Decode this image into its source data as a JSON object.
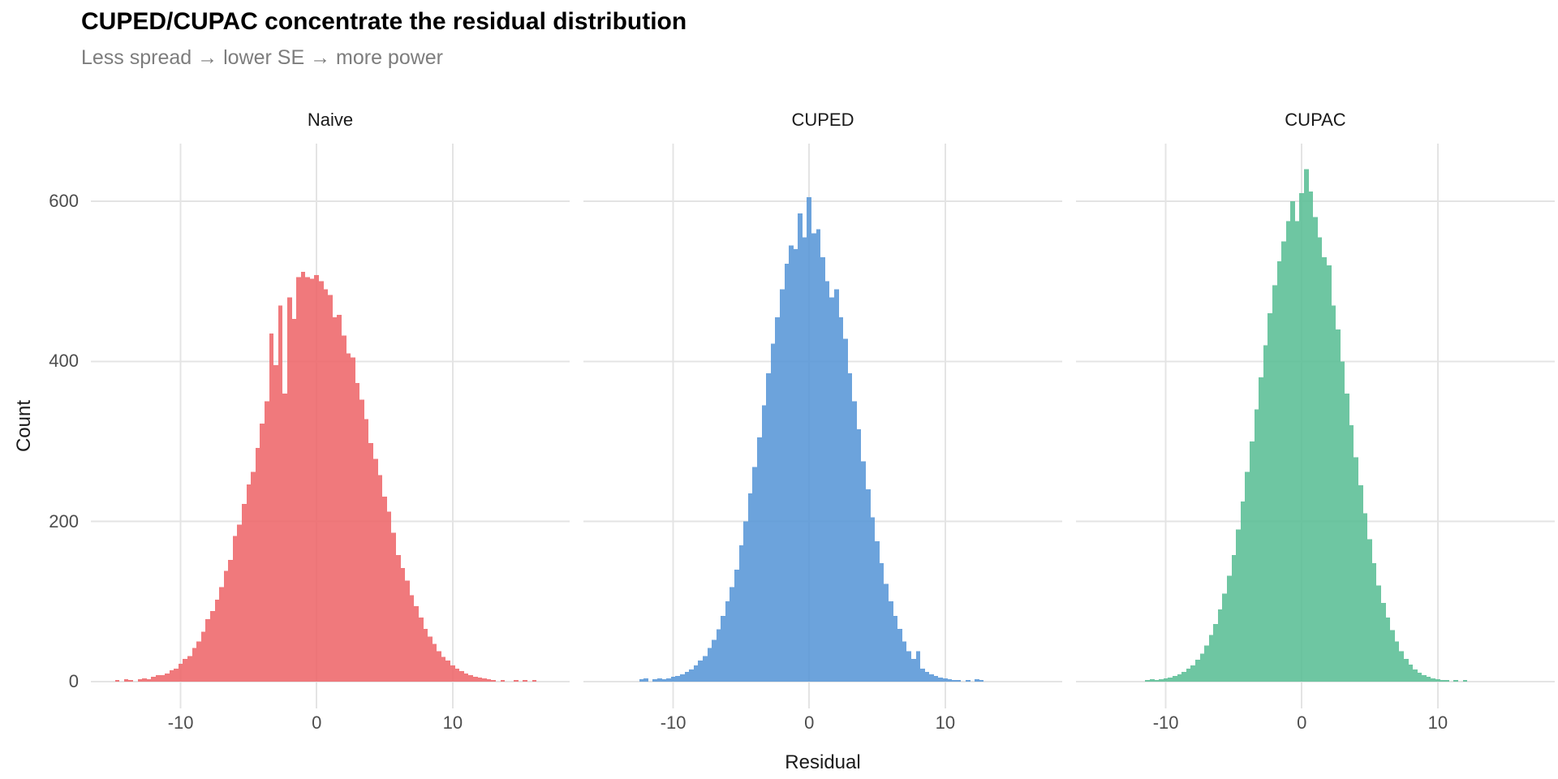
{
  "header": {
    "title": "CUPED/CUPAC concentrate the residual distribution",
    "subtitle": "Less spread → lower SE → more power"
  },
  "axes": {
    "x_label": "Residual",
    "y_label": "Count",
    "x_tick_labels": [
      "-10",
      "0",
      "10"
    ],
    "y_tick_labels": [
      "0",
      "200",
      "400",
      "600"
    ]
  },
  "theme": {
    "background": "#ffffff",
    "gridline_color": "#e4e4e4",
    "tick_text_color": "#4d4d4d",
    "facet_text_color": "#1a1a1a",
    "subtitle_color": "#7d7d7d",
    "bar_opacity": 0.88
  },
  "chart_data": {
    "type": "bar",
    "subtype": "faceted-histogram",
    "title": "CUPED/CUPAC concentrate the residual distribution",
    "subtitle": "Less spread → lower SE → more power",
    "xlabel": "Residual",
    "ylabel": "Count",
    "x_ticks": [
      -10,
      0,
      10
    ],
    "y_ticks": [
      0,
      200,
      400,
      600
    ],
    "xlim": [
      -16.6,
      18.6
    ],
    "ylim": [
      0,
      672
    ],
    "ylim_expanded": [
      -33.6,
      672
    ],
    "grid": true,
    "legend": "none",
    "facets": [
      {
        "label": "Naive",
        "color": "#ee666a",
        "observed_color": "#f07880",
        "peak_count": 512,
        "bin_start": -15.0,
        "bin_width": 0.33333,
        "counts": [
          0,
          2,
          0,
          3,
          2,
          0,
          3,
          4,
          3,
          6,
          8,
          8,
          10,
          14,
          16,
          22,
          28,
          32,
          42,
          50,
          62,
          78,
          88,
          102,
          118,
          138,
          152,
          182,
          196,
          222,
          246,
          262,
          292,
          322,
          350,
          435,
          395,
          470,
          360,
          480,
          453,
          505,
          512,
          505,
          503,
          508,
          500,
          490,
          483,
          455,
          458,
          432,
          410,
          405,
          373,
          352,
          328,
          298,
          278,
          258,
          231,
          212,
          186,
          158,
          142,
          126,
          108,
          94,
          80,
          66,
          56,
          47,
          38,
          31,
          26,
          20,
          16,
          13,
          10,
          8,
          6,
          5,
          4,
          3,
          2,
          0,
          2,
          0,
          0,
          2,
          0,
          2,
          0,
          2
        ]
      },
      {
        "label": "CUPED",
        "color": "#5896d7",
        "observed_color": "#6ca3dc",
        "peak_count": 605,
        "bin_start": -12.33333,
        "bin_width": 0.33333,
        "counts": [
          3,
          4,
          0,
          3,
          4,
          3,
          4,
          6,
          7,
          9,
          12,
          15,
          20,
          26,
          32,
          42,
          52,
          65,
          82,
          100,
          118,
          140,
          170,
          200,
          235,
          268,
          305,
          345,
          385,
          422,
          455,
          490,
          522,
          545,
          540,
          585,
          555,
          605,
          560,
          565,
          530,
          500,
          480,
          490,
          455,
          428,
          385,
          350,
          315,
          275,
          240,
          205,
          175,
          148,
          122,
          100,
          82,
          66,
          50,
          38,
          28,
          38,
          16,
          12,
          9,
          7,
          5,
          4,
          3,
          2,
          2,
          0,
          2,
          0,
          3,
          2
        ]
      },
      {
        "label": "CUPAC",
        "color": "#5abe95",
        "observed_color": "#6ec6a2",
        "peak_count": 640,
        "bin_start": -11.33333,
        "bin_width": 0.33333,
        "counts": [
          2,
          3,
          2,
          3,
          4,
          5,
          7,
          9,
          12,
          16,
          20,
          27,
          35,
          45,
          58,
          72,
          90,
          110,
          132,
          158,
          190,
          225,
          262,
          300,
          340,
          380,
          420,
          460,
          495,
          525,
          550,
          575,
          600,
          575,
          610,
          640,
          612,
          580,
          555,
          530,
          520,
          470,
          440,
          400,
          360,
          320,
          280,
          245,
          210,
          178,
          148,
          120,
          98,
          80,
          64,
          50,
          38,
          28,
          21,
          15,
          11,
          8,
          6,
          4,
          3,
          2,
          2,
          0,
          2,
          0,
          2,
          0
        ]
      }
    ]
  }
}
